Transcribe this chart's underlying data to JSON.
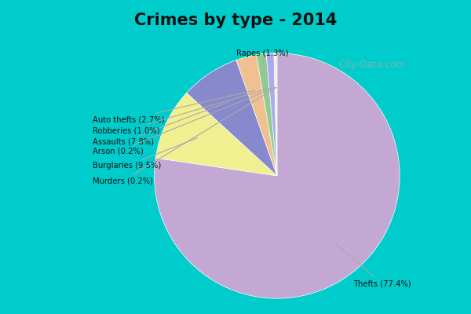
{
  "title": "Crimes by type - 2014",
  "slices": [
    {
      "label": "Thefts",
      "pct": 77.4,
      "color": "#C4A8D4"
    },
    {
      "label": "Burglaries",
      "pct": 9.5,
      "color": "#F0F090"
    },
    {
      "label": "Assaults",
      "pct": 7.8,
      "color": "#8888CC"
    },
    {
      "label": "Auto thefts",
      "pct": 2.7,
      "color": "#F0C090"
    },
    {
      "label": "Rapes",
      "pct": 1.3,
      "color": "#90CC90"
    },
    {
      "label": "Robberies",
      "pct": 1.0,
      "color": "#AAAAEE"
    },
    {
      "label": "Arson",
      "pct": 0.2,
      "color": "#FFE0B0"
    },
    {
      "label": "Murders",
      "pct": 0.2,
      "color": "#E0F0E0"
    }
  ],
  "bg_top": "#00CCCC",
  "bg_chart": "#D8EDD8",
  "title_color": "#111111",
  "label_color": "#111111",
  "watermark": "City-Data.com"
}
